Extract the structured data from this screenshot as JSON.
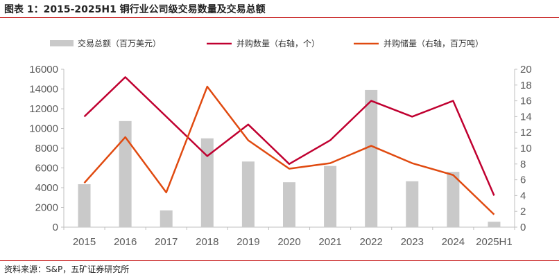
{
  "title": "图表 1：2015-2025H1 铜行业公司级交易数量及交易总额",
  "source": "资料来源：S&P，五矿证券研究所",
  "colors": {
    "bar": "#c9c9c9",
    "count_line": "#c00030",
    "reserve_line": "#e04a10",
    "rule": "#c00000"
  },
  "chart_data": {
    "type": "bar",
    "categories": [
      "2015",
      "2016",
      "2017",
      "2018",
      "2019",
      "2020",
      "2021",
      "2022",
      "2023",
      "2024",
      "2025H1"
    ],
    "left_axis": {
      "ylim": [
        0,
        16000
      ],
      "ticks": [
        "0",
        "2000",
        "4000",
        "6000",
        "8000",
        "10000",
        "12000",
        "14000",
        "16000"
      ]
    },
    "right_axis": {
      "ylim": [
        0,
        20
      ],
      "ticks": [
        "0",
        "2",
        "4",
        "6",
        "8",
        "10",
        "12",
        "14",
        "16",
        "18",
        "20"
      ]
    },
    "legend_position": "top",
    "series": [
      {
        "name": "交易总额（百万美元）",
        "type": "bar",
        "axis": "left",
        "values": [
          4350,
          10750,
          1700,
          9000,
          6650,
          4550,
          6200,
          13900,
          4650,
          5600,
          550
        ]
      },
      {
        "name": "并购数量（右轴，个）",
        "type": "line",
        "axis": "right",
        "values": [
          14,
          19,
          14,
          9,
          13,
          8,
          11,
          16,
          14,
          16,
          4
        ]
      },
      {
        "name": "并购储量（右轴，百万吨）",
        "type": "line",
        "axis": "right",
        "values": [
          5.6,
          11.4,
          4.4,
          17.8,
          11,
          7.4,
          8.1,
          10.3,
          8.1,
          6.6,
          1.6
        ]
      }
    ]
  }
}
